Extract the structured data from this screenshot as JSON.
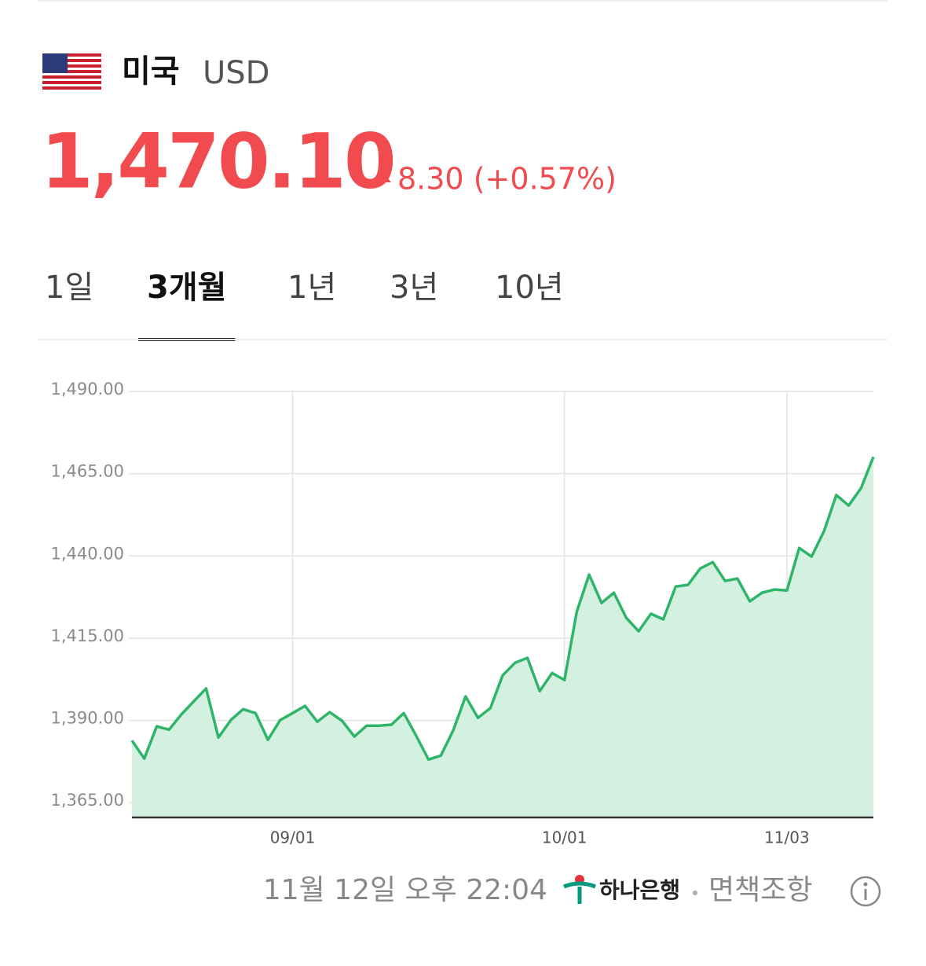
{
  "header": {
    "country": "미국",
    "currency": "USD"
  },
  "price": {
    "value": "1,470.10",
    "change": "8.30 (+0.57%)"
  },
  "tabs": [
    "1일",
    "3개월",
    "1년",
    "3년",
    "10년"
  ],
  "active_tab": 1,
  "chart_data": {
    "type": "line",
    "color": "#2fb56a",
    "fill": "#d4f0e1",
    "grid": true,
    "categories": [
      null,
      null,
      null,
      null,
      null,
      null,
      null,
      null,
      null,
      null,
      null,
      null,
      null,
      "09/01",
      null,
      null,
      null,
      null,
      null,
      null,
      null,
      null,
      null,
      null,
      null,
      null,
      null,
      null,
      null,
      null,
      null,
      null,
      null,
      null,
      null,
      "10/01",
      null,
      null,
      null,
      null,
      null,
      null,
      null,
      null,
      null,
      null,
      null,
      null,
      null,
      null,
      null,
      null,
      null,
      "11/03",
      null,
      null,
      null,
      null,
      null,
      null,
      null
    ],
    "values": [
      1383.9,
      1378.4,
      1388.2,
      1387.2,
      1391.8,
      1395.8,
      1399.7,
      1384.8,
      1390.1,
      1393.4,
      1392.2,
      1384.1,
      1390.1,
      1392.2,
      1394.4,
      1389.6,
      1392.5,
      1389.9,
      1385.1,
      1388.4,
      1388.4,
      1388.7,
      1392.2,
      1385.3,
      1378.1,
      1379.3,
      1387.0,
      1397.3,
      1390.8,
      1393.7,
      1403.7,
      1407.5,
      1409.0,
      1398.9,
      1404.4,
      1402.3,
      1423.1,
      1434.3,
      1425.7,
      1428.8,
      1421.2,
      1417.1,
      1422.4,
      1420.7,
      1430.7,
      1431.2,
      1436.2,
      1438.1,
      1432.4,
      1433.1,
      1426.2,
      1428.8,
      1429.8,
      1429.5,
      1442.4,
      1439.8,
      1447.5,
      1458.5,
      1455.3,
      1460.6,
      1470.1
    ],
    "ylim": [
      1360.5,
      1490
    ],
    "yticks": [
      {
        "value": 1365,
        "label": "1,365.00"
      },
      {
        "value": 1390,
        "label": "1,390.00"
      },
      {
        "value": 1415,
        "label": "1,415.00"
      },
      {
        "value": 1440,
        "label": "1,440.00"
      },
      {
        "value": 1465,
        "label": "1,465.00"
      },
      {
        "value": 1490,
        "label": "1,490.00"
      }
    ]
  },
  "footer": {
    "timestamp": "11월 12일 오후 22:04",
    "bank": "하나은행",
    "disclaimer": "면책조항"
  }
}
